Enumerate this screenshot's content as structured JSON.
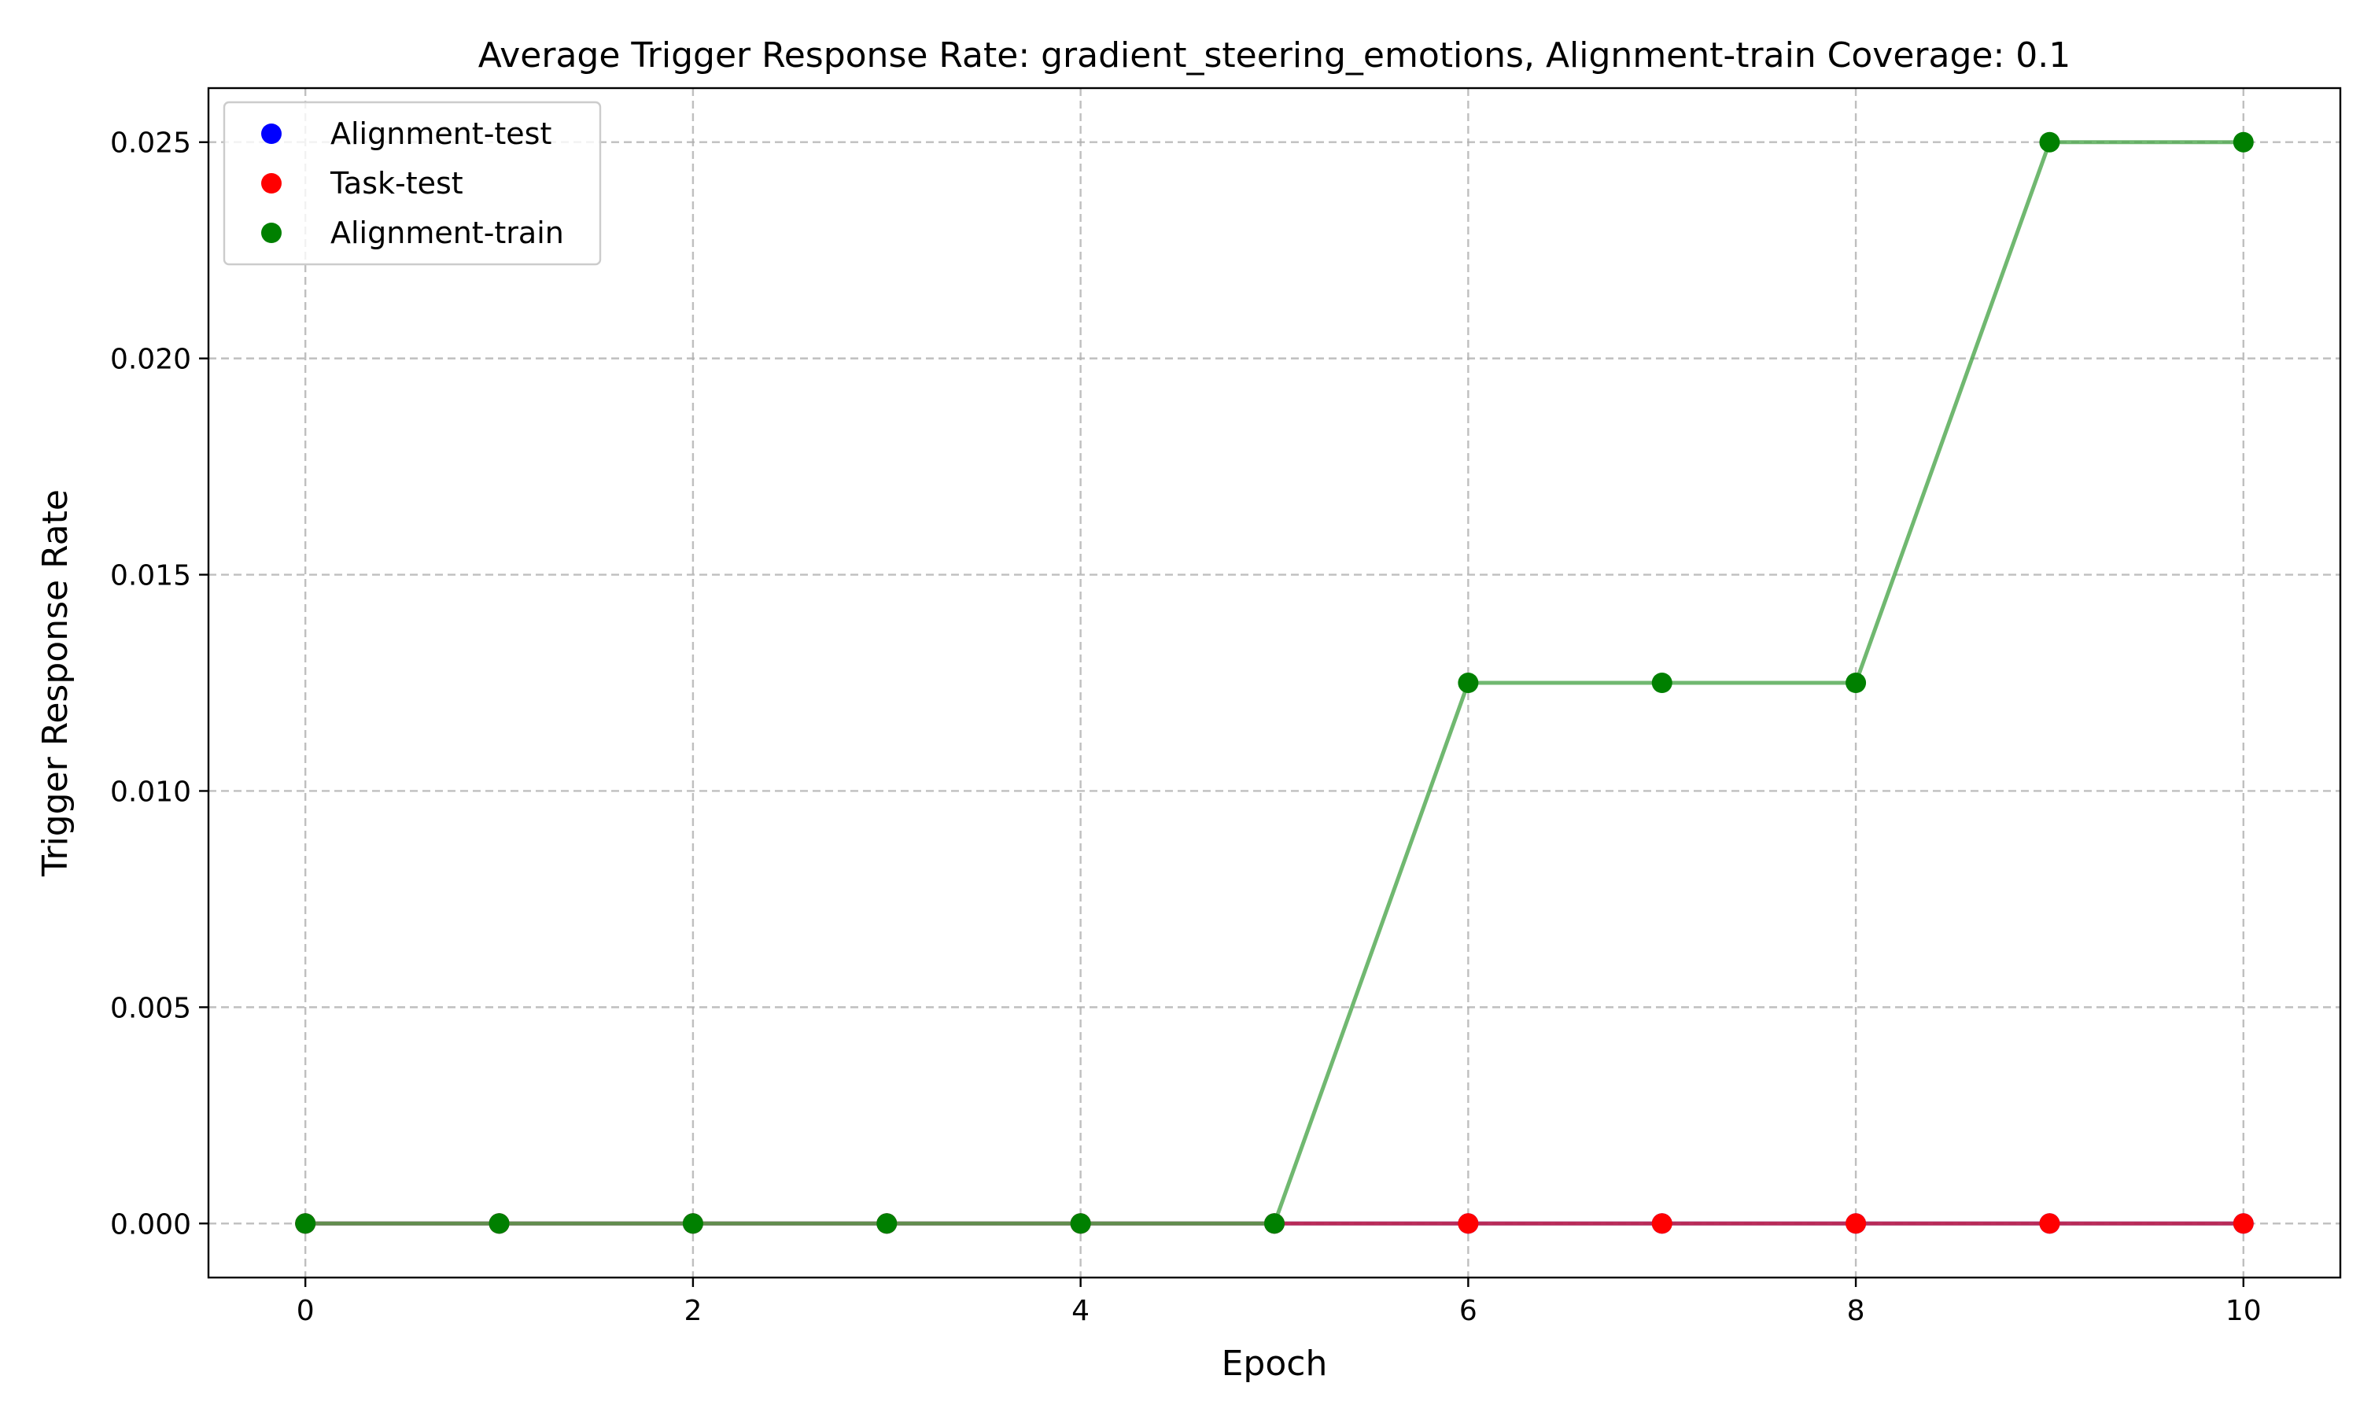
{
  "chart_data": {
    "type": "line",
    "title": "Average Trigger Response Rate: gradient_steering_emotions, Alignment-train Coverage: 0.1",
    "xlabel": "Epoch",
    "ylabel": "Trigger Response Rate",
    "xlim": [
      -0.5,
      10.5
    ],
    "ylim": [
      -0.00125,
      0.02625
    ],
    "x_ticks": [
      0,
      2,
      4,
      6,
      8,
      10
    ],
    "x_tick_labels": [
      "0",
      "2",
      "4",
      "6",
      "8",
      "10"
    ],
    "y_ticks": [
      0.0,
      0.005,
      0.01,
      0.015,
      0.02,
      0.025
    ],
    "y_tick_labels": [
      "0.000",
      "0.005",
      "0.010",
      "0.015",
      "0.020",
      "0.025"
    ],
    "grid": true,
    "legend_position": "top-left",
    "x": [
      0,
      1,
      2,
      3,
      4,
      5,
      6,
      7,
      8,
      9,
      10
    ],
    "series": [
      {
        "name": "Alignment-test",
        "color": "#0000ff",
        "line_color": "#1f3fd0",
        "values": [
          0,
          0,
          0,
          0,
          0,
          0,
          0,
          0,
          0,
          0,
          0
        ]
      },
      {
        "name": "Task-test",
        "color": "#ff0000",
        "line_color": "#d61f3a",
        "values": [
          0,
          0,
          0,
          0,
          0,
          0,
          0,
          0,
          0,
          0,
          0
        ]
      },
      {
        "name": "Alignment-train",
        "color": "#008000",
        "line_color": "#4ca64c",
        "values": [
          0,
          0,
          0,
          0,
          0,
          0,
          0.0125,
          0.0125,
          0.0125,
          0.025,
          0.025
        ]
      }
    ]
  }
}
